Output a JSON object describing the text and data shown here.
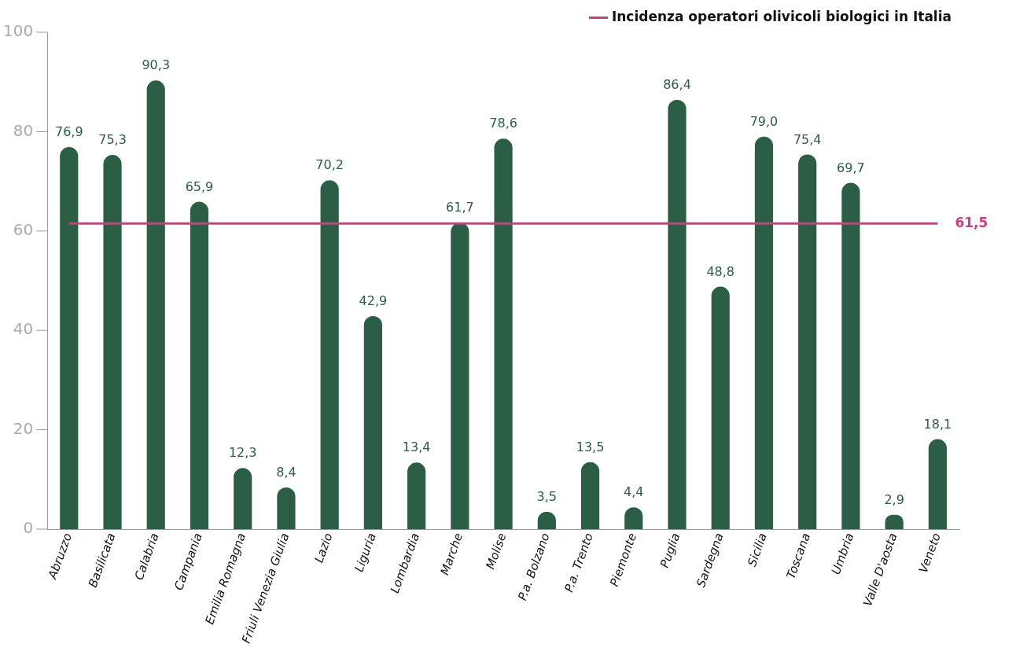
{
  "chart_data": {
    "type": "bar",
    "categories": [
      "Abruzzo",
      "Basilicata",
      "Calabria",
      "Campania",
      "Emilia Romagna",
      "Friuli Venezia Giulia",
      "Lazio",
      "Liguria",
      "Lombardia",
      "Marche",
      "Molise",
      "P.a. Bolzano",
      "P.a. Trento",
      "Piemonte",
      "Puglia",
      "Sardegna",
      "Sicilia",
      "Toscana",
      "Umbria",
      "Valle D'aosta",
      "Veneto"
    ],
    "series": [
      {
        "color": "#2c5e45",
        "values": [
          76.9,
          75.3,
          90.3,
          65.9,
          12.3,
          8.4,
          70.2,
          42.9,
          13.4,
          61.7,
          78.6,
          3.5,
          13.5,
          4.4,
          86.4,
          48.8,
          79.0,
          75.4,
          69.7,
          2.9,
          18.1
        ],
        "value_labels": [
          "76,9",
          "75,3",
          "90,3",
          "65,9",
          "12,3",
          "8,4",
          "70,2",
          "42,9",
          "13,4",
          "61,7",
          "78,6",
          "3,5",
          "13,5",
          "4,4",
          "86,4",
          "48,8",
          "79,0",
          "75,4",
          "69,7",
          "2,9",
          "18,1"
        ]
      },
      {
        "type": "line",
        "name": "Incidenza operatori olivicoli biologici in Italia",
        "color": "#c8407f",
        "values": [
          61.5,
          61.5,
          61.5,
          61.5,
          61.5,
          61.5,
          61.5,
          61.5,
          61.5,
          61.5,
          61.5,
          61.5,
          61.5,
          61.5,
          61.5,
          61.5,
          61.5,
          61.5,
          61.5,
          61.5,
          61.5
        ],
        "value_labels": [
          null,
          null,
          null,
          null,
          null,
          null,
          null,
          null,
          null,
          null,
          null,
          null,
          null,
          null,
          null,
          null,
          null,
          null,
          null,
          null,
          "61,5"
        ]
      }
    ],
    "ylim": [
      0,
      100
    ],
    "yticks": [
      0,
      20,
      40,
      60,
      80,
      100
    ],
    "grid": false,
    "legend": "top right",
    "marker": "none",
    "line_style": "solid"
  }
}
